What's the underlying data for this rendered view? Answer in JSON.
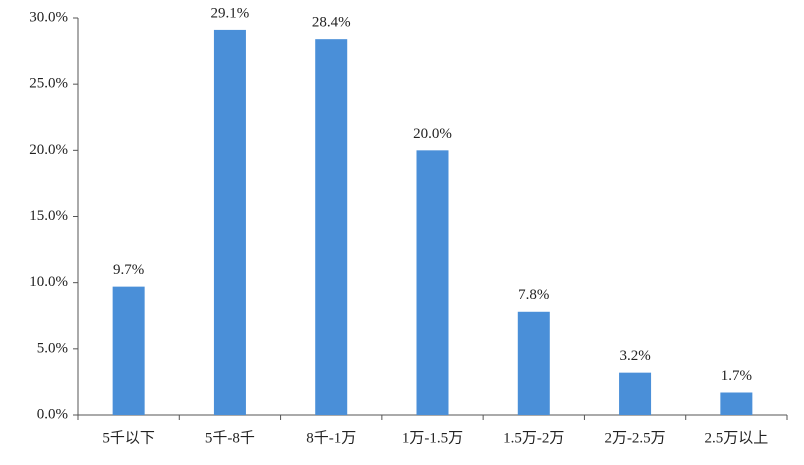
{
  "chart_data": {
    "type": "bar",
    "categories": [
      "5千以下",
      "5千-8千",
      "8千-1万",
      "1万-1.5万",
      "1.5万-2万",
      "2万-2.5万",
      "2.5万以上"
    ],
    "values": [
      9.7,
      29.1,
      28.4,
      20.0,
      7.8,
      3.2,
      1.7
    ],
    "value_labels": [
      "9.7%",
      "29.1%",
      "28.4%",
      "20.0%",
      "7.8%",
      "3.2%",
      "1.7%"
    ],
    "color": "#4a8fd8",
    "ylim": [
      0,
      30
    ],
    "yticks": [
      {
        "value": 0,
        "label": "0.0%"
      },
      {
        "value": 5,
        "label": "5.0%"
      },
      {
        "value": 10,
        "label": "10.0%"
      },
      {
        "value": 15,
        "label": "15.0%"
      },
      {
        "value": 20,
        "label": "20.0%"
      },
      {
        "value": 25,
        "label": "25.0%"
      },
      {
        "value": 30,
        "label": "30.0%"
      }
    ],
    "grid": false
  }
}
